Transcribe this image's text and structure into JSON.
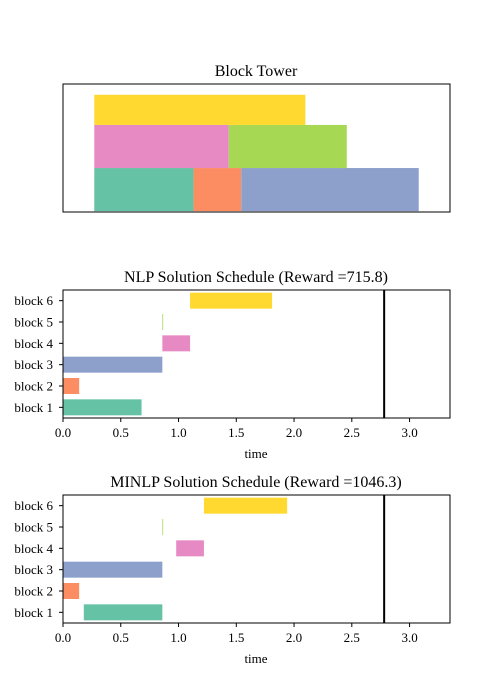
{
  "colors": {
    "block1": "#66c2a5",
    "block2": "#fc8d62",
    "block3": "#8da0cb",
    "block4": "#e78ac3",
    "block5": "#a6d854",
    "block6": "#ffd92f"
  },
  "chart_data": [
    {
      "type": "block-tower",
      "title": "Block Tower",
      "blocks": [
        {
          "name": "block 1",
          "x0": 0.0,
          "x1": 1.27,
          "y0": 0,
          "y1": 1
        },
        {
          "name": "block 2",
          "x0": 1.27,
          "x1": 1.88,
          "y0": 0,
          "y1": 1
        },
        {
          "name": "block 3",
          "x0": 1.88,
          "x1": 4.15,
          "y0": 0,
          "y1": 1
        },
        {
          "name": "block 4",
          "x0": 0.0,
          "x1": 1.72,
          "y0": 1,
          "y1": 2
        },
        {
          "name": "block 5",
          "x0": 1.72,
          "x1": 3.23,
          "y0": 1,
          "y1": 2
        },
        {
          "name": "block 6",
          "x0": 0.0,
          "x1": 2.7,
          "y0": 2,
          "y1": 2.7
        }
      ],
      "xlim": [
        -0.4,
        4.55
      ],
      "ylim": [
        -0.02,
        2.95
      ]
    },
    {
      "type": "bar",
      "orientation": "horizontal",
      "title": "NLP Solution Schedule (Reward =715.8)",
      "xlabel": "time",
      "ylabel": "",
      "categories": [
        "block 1",
        "block 2",
        "block 3",
        "block 4",
        "block 5",
        "block 6"
      ],
      "bars": [
        {
          "start": 0.0,
          "end": 0.68
        },
        {
          "start": 0.0,
          "end": 0.14
        },
        {
          "start": 0.0,
          "end": 0.86
        },
        {
          "start": 0.86,
          "end": 1.1
        },
        {
          "start": 0.86,
          "end": 0.865
        },
        {
          "start": 1.1,
          "end": 1.81
        }
      ],
      "vline": 2.78,
      "xlim": [
        0.0,
        3.35
      ],
      "xticks": [
        "0.0",
        "0.5",
        "1.0",
        "1.5",
        "2.0",
        "2.5",
        "3.0"
      ]
    },
    {
      "type": "bar",
      "orientation": "horizontal",
      "title": "MINLP Solution Schedule (Reward =1046.3)",
      "xlabel": "time",
      "ylabel": "",
      "categories": [
        "block 1",
        "block 2",
        "block 3",
        "block 4",
        "block 5",
        "block 6"
      ],
      "bars": [
        {
          "start": 0.18,
          "end": 0.86
        },
        {
          "start": 0.0,
          "end": 0.14
        },
        {
          "start": 0.0,
          "end": 0.86
        },
        {
          "start": 0.98,
          "end": 1.22
        },
        {
          "start": 0.86,
          "end": 0.865
        },
        {
          "start": 1.22,
          "end": 1.94
        }
      ],
      "vline": 2.78,
      "xlim": [
        0.0,
        3.35
      ],
      "xticks": [
        "0.0",
        "0.5",
        "1.0",
        "1.5",
        "2.0",
        "2.5",
        "3.0"
      ]
    }
  ]
}
